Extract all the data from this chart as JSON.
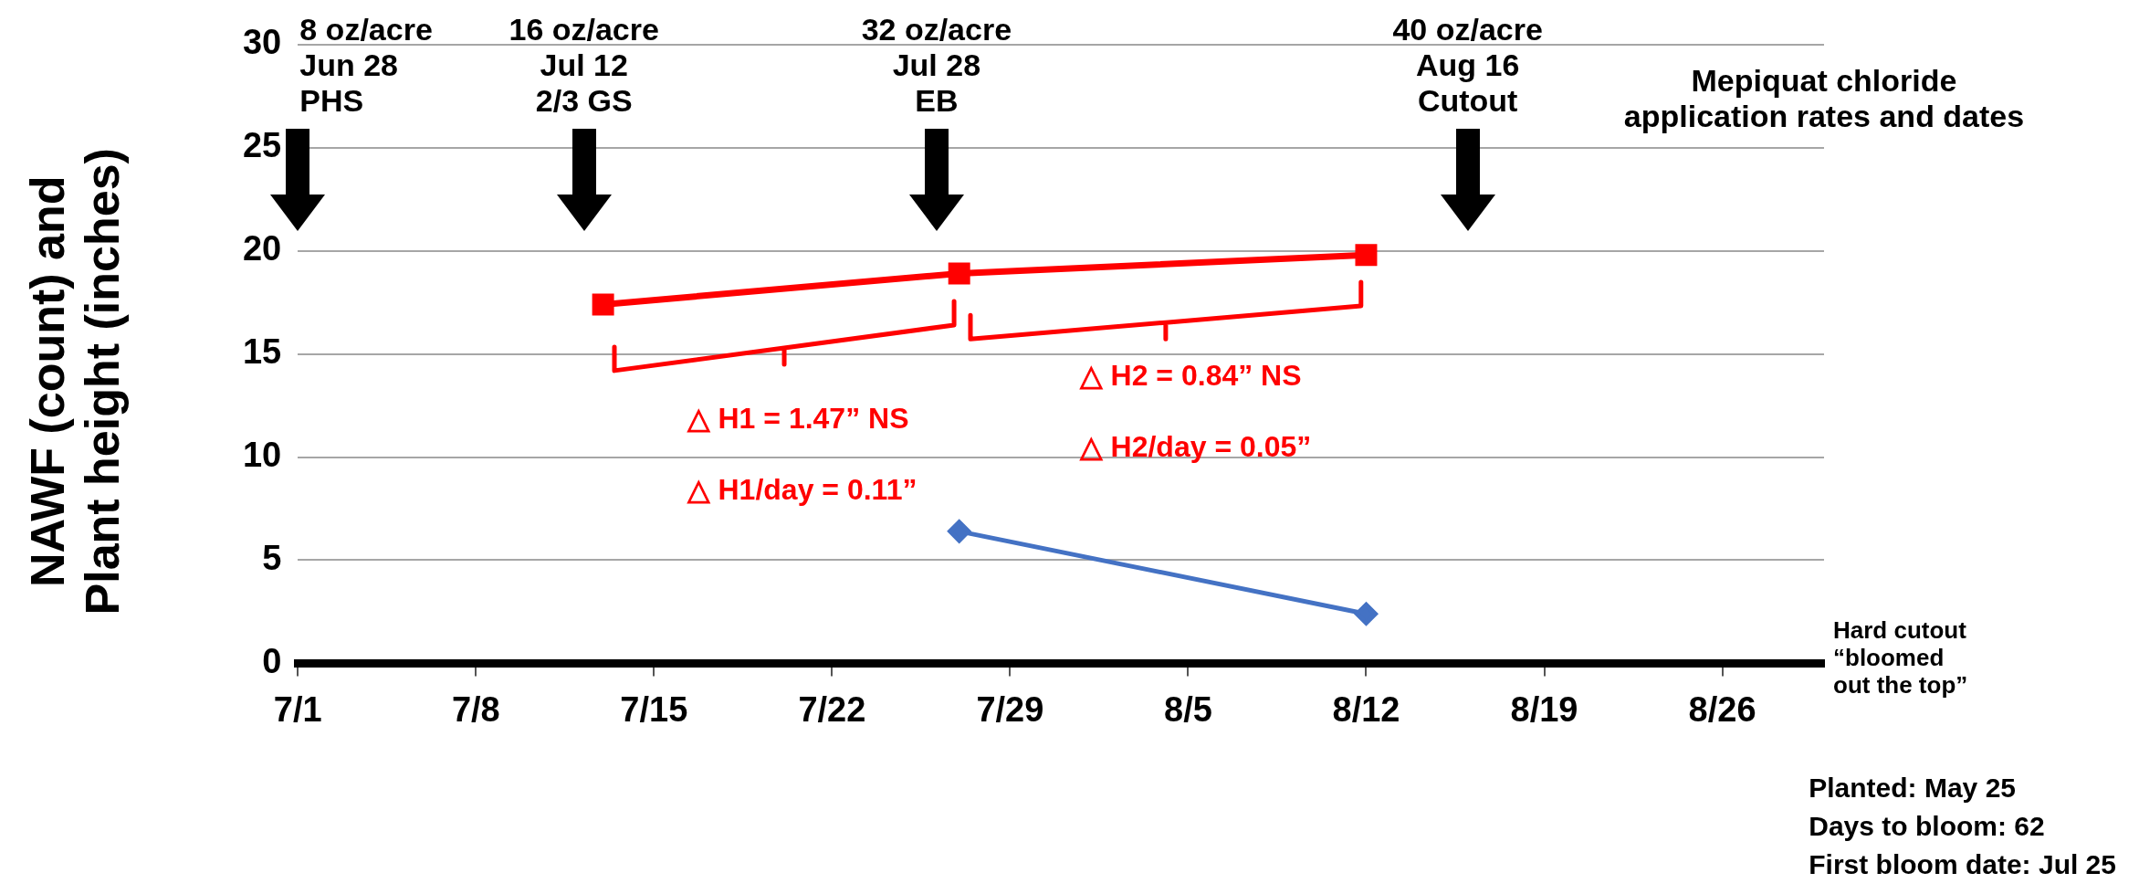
{
  "chart_data": {
    "type": "line",
    "ylabel": "NAWF (count) and Plant height (inches)",
    "xlim": [
      "--07-01",
      "--08-30"
    ],
    "xticks": [
      {
        "value": "--07-01",
        "label": "7/1"
      },
      {
        "value": "--07-08",
        "label": "7/8"
      },
      {
        "value": "--07-15",
        "label": "7/15"
      },
      {
        "value": "--07-22",
        "label": "7/22"
      },
      {
        "value": "--07-29",
        "label": "7/29"
      },
      {
        "value": "--08-05",
        "label": "8/5"
      },
      {
        "value": "--08-12",
        "label": "8/12"
      },
      {
        "value": "--08-19",
        "label": "8/19"
      },
      {
        "value": "--08-26",
        "label": "8/26"
      }
    ],
    "ylim": [
      0,
      30
    ],
    "yticks": [
      0,
      5,
      10,
      15,
      20,
      25,
      30
    ],
    "series": [
      {
        "color": "#4472c4",
        "marker": "diamond",
        "x": [
          "--07-27",
          "--08-12"
        ],
        "values": [
          6.4,
          2.4
        ]
      },
      {
        "color": "#ff0000",
        "marker": "square",
        "x": [
          "--07-13",
          "--07-27",
          "--08-12"
        ],
        "values": [
          17.4,
          18.9,
          19.8
        ]
      }
    ],
    "annotations": [
      "8 oz/acre\nJun 28\nPHS",
      "16 oz/acre\nJul 12\n2/3 GS",
      "32 oz/acre\nJul 28\nEB",
      "40 oz/acre\nAug 16\nCutout",
      "△ H1 = 1.47” NS",
      "△ H1/day = 0.11”",
      "△ H2 = 0.84” NS",
      "△ H2/day = 0.05”",
      "Mepiquat chloride\napplication rates and dates",
      "Hard cutout\n“bloomed\nout the top”",
      "Planted:  May 25\nDays to bloom:  62\nFirst bloom date:  Jul 25"
    ],
    "grid": "y",
    "legend": false,
    "line_style": "solid"
  }
}
